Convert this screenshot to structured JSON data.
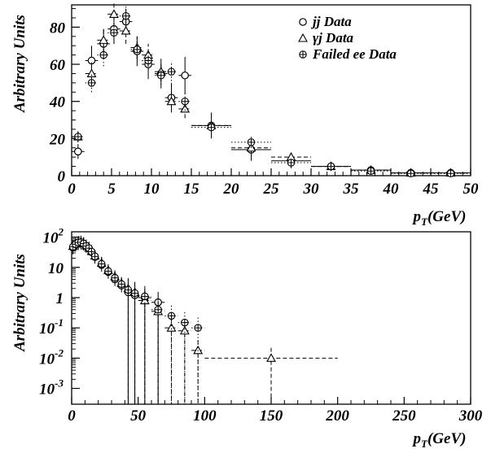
{
  "chart_data": [
    {
      "type": "scatter",
      "xlabel": "p_T(GeV)",
      "ylabel": "Arbitrary Units",
      "xlim": [
        0,
        50
      ],
      "ylim": [
        0,
        92
      ],
      "xticks": [
        "0",
        "5",
        "10",
        "15",
        "20",
        "25",
        "30",
        "35",
        "40",
        "45",
        "50"
      ],
      "yticks": [
        "0",
        "20",
        "40",
        "60",
        "80"
      ],
      "legend_position": "top-right",
      "series": [
        {
          "name": "jj Data",
          "marker": "circle",
          "line_style": "solid",
          "points": [
            {
              "x": 0.8,
              "y": 13,
              "xerr": 0.8,
              "yerr": 4
            },
            {
              "x": 2.5,
              "y": 62,
              "xerr": 0.8,
              "yerr": 8
            },
            {
              "x": 4.0,
              "y": 71,
              "xerr": 0.8,
              "yerr": 8
            },
            {
              "x": 5.3,
              "y": 79,
              "xerr": 0.8,
              "yerr": 8
            },
            {
              "x": 6.8,
              "y": 83,
              "xerr": 0.8,
              "yerr": 7
            },
            {
              "x": 8.2,
              "y": 67,
              "xerr": 0.8,
              "yerr": 8
            },
            {
              "x": 9.6,
              "y": 60,
              "xerr": 0.8,
              "yerr": 8
            },
            {
              "x": 11.2,
              "y": 55,
              "xerr": 0.8,
              "yerr": 8
            },
            {
              "x": 12.5,
              "y": 42,
              "xerr": 0.8,
              "yerr": 8
            },
            {
              "x": 14.2,
              "y": 54,
              "xerr": 0.8,
              "yerr": 10
            },
            {
              "x": 17.5,
              "y": 27,
              "xerr": 2.5,
              "yerr": 7
            },
            {
              "x": 22.5,
              "y": 14,
              "xerr": 2.5,
              "yerr": 6
            },
            {
              "x": 27.5,
              "y": 8,
              "xerr": 2.5,
              "yerr": 4
            },
            {
              "x": 32.5,
              "y": 5,
              "xerr": 2.5,
              "yerr": 2.5
            },
            {
              "x": 37.5,
              "y": 3,
              "xerr": 2.5,
              "yerr": 2
            },
            {
              "x": 42.5,
              "y": 1.5,
              "xerr": 2.5,
              "yerr": 1
            },
            {
              "x": 47.5,
              "y": 1.5,
              "xerr": 2.5,
              "yerr": 1
            }
          ]
        },
        {
          "name": "γj Data",
          "marker": "triangle",
          "line_style": "dashed",
          "points": [
            {
              "x": 0.8,
              "y": 21,
              "xerr": 0.8,
              "yerr": 3
            },
            {
              "x": 2.5,
              "y": 55,
              "xerr": 0.8,
              "yerr": 6
            },
            {
              "x": 4.0,
              "y": 73,
              "xerr": 0.8,
              "yerr": 7
            },
            {
              "x": 5.3,
              "y": 87,
              "xerr": 0.8,
              "yerr": 7
            },
            {
              "x": 6.8,
              "y": 78,
              "xerr": 0.8,
              "yerr": 7
            },
            {
              "x": 8.2,
              "y": 69,
              "xerr": 0.8,
              "yerr": 6
            },
            {
              "x": 9.6,
              "y": 65,
              "xerr": 0.8,
              "yerr": 6
            },
            {
              "x": 11.2,
              "y": 56,
              "xerr": 0.8,
              "yerr": 5
            },
            {
              "x": 12.5,
              "y": 40,
              "xerr": 0.8,
              "yerr": 5
            },
            {
              "x": 14.2,
              "y": 36,
              "xerr": 0.8,
              "yerr": 5
            },
            {
              "x": 17.5,
              "y": 27,
              "xerr": 2.5,
              "yerr": 3
            },
            {
              "x": 22.5,
              "y": 15,
              "xerr": 2.5,
              "yerr": 3
            },
            {
              "x": 27.5,
              "y": 10,
              "xerr": 2.5,
              "yerr": 2
            },
            {
              "x": 32.5,
              "y": 5,
              "xerr": 2.5,
              "yerr": 1.5
            },
            {
              "x": 37.5,
              "y": 3,
              "xerr": 2.5,
              "yerr": 1
            },
            {
              "x": 42.5,
              "y": 1.5,
              "xerr": 2.5,
              "yerr": 0.8
            },
            {
              "x": 47.5,
              "y": 1.5,
              "xerr": 2.5,
              "yerr": 0.8
            }
          ]
        },
        {
          "name": "Failed ee Data",
          "marker": "crossed-circle",
          "line_style": "dotted",
          "points": [
            {
              "x": 0.8,
              "y": 21,
              "xerr": 0.8,
              "yerr": 3
            },
            {
              "x": 2.5,
              "y": 50,
              "xerr": 0.8,
              "yerr": 5
            },
            {
              "x": 4.0,
              "y": 65,
              "xerr": 0.8,
              "yerr": 6
            },
            {
              "x": 5.3,
              "y": 77,
              "xerr": 0.8,
              "yerr": 6
            },
            {
              "x": 6.8,
              "y": 86,
              "xerr": 0.8,
              "yerr": 6
            },
            {
              "x": 8.2,
              "y": 68,
              "xerr": 0.8,
              "yerr": 5
            },
            {
              "x": 9.6,
              "y": 62,
              "xerr": 0.8,
              "yerr": 5
            },
            {
              "x": 11.2,
              "y": 54,
              "xerr": 0.8,
              "yerr": 5
            },
            {
              "x": 12.5,
              "y": 56,
              "xerr": 0.8,
              "yerr": 5
            },
            {
              "x": 14.2,
              "y": 40,
              "xerr": 0.8,
              "yerr": 5
            },
            {
              "x": 17.5,
              "y": 26,
              "xerr": 2.5,
              "yerr": 3
            },
            {
              "x": 22.5,
              "y": 18,
              "xerr": 2.5,
              "yerr": 3
            },
            {
              "x": 27.5,
              "y": 7,
              "xerr": 2.5,
              "yerr": 2
            },
            {
              "x": 32.5,
              "y": 5,
              "xerr": 2.5,
              "yerr": 1.5
            },
            {
              "x": 37.5,
              "y": 2.5,
              "xerr": 2.5,
              "yerr": 1
            },
            {
              "x": 42.5,
              "y": 1.2,
              "xerr": 2.5,
              "yerr": 0.8
            },
            {
              "x": 47.5,
              "y": 1.2,
              "xerr": 2.5,
              "yerr": 0.8
            }
          ]
        }
      ]
    },
    {
      "type": "scatter",
      "xlabel": "p_T(GeV)",
      "ylabel": "Arbitrary Units",
      "xlim": [
        0,
        300
      ],
      "ylim": [
        0.0003,
        150
      ],
      "y_scale": "log",
      "xticks": [
        "0",
        "50",
        "100",
        "150",
        "200",
        "250",
        "300"
      ],
      "yticks": [
        {
          "base": "10",
          "exp": "2"
        },
        {
          "base": "10",
          "exp": ""
        },
        {
          "base": "1",
          "exp": ""
        },
        {
          "base": "10",
          "exp": "-1"
        },
        {
          "base": "10",
          "exp": "-2"
        },
        {
          "base": "10",
          "exp": "-3"
        }
      ],
      "series": [
        {
          "name": "jj Data",
          "marker": "circle",
          "line_style": "solid",
          "points": [
            {
              "x": 1,
              "y": 45
            },
            {
              "x": 3,
              "y": 55
            },
            {
              "x": 5,
              "y": 62
            },
            {
              "x": 7,
              "y": 65
            },
            {
              "x": 9,
              "y": 60
            },
            {
              "x": 11,
              "y": 50
            },
            {
              "x": 13,
              "y": 42
            },
            {
              "x": 15,
              "y": 32
            },
            {
              "x": 17.5,
              "y": 22
            },
            {
              "x": 22.5,
              "y": 12
            },
            {
              "x": 27.5,
              "y": 7
            },
            {
              "x": 32.5,
              "y": 4
            },
            {
              "x": 37.5,
              "y": 2.5
            },
            {
              "x": 42.5,
              "y": 1.5
            },
            {
              "x": 47.5,
              "y": 1.2
            },
            {
              "x": 55,
              "y": 1.0
            },
            {
              "x": 65,
              "y": 0.7
            }
          ]
        },
        {
          "name": "γj Data",
          "marker": "triangle",
          "line_style": "dashed",
          "points": [
            {
              "x": 1,
              "y": 50
            },
            {
              "x": 3,
              "y": 60
            },
            {
              "x": 5,
              "y": 68
            },
            {
              "x": 7,
              "y": 70
            },
            {
              "x": 9,
              "y": 62
            },
            {
              "x": 11,
              "y": 52
            },
            {
              "x": 13,
              "y": 44
            },
            {
              "x": 15,
              "y": 34
            },
            {
              "x": 17.5,
              "y": 24
            },
            {
              "x": 22.5,
              "y": 14
            },
            {
              "x": 27.5,
              "y": 8
            },
            {
              "x": 32.5,
              "y": 5
            },
            {
              "x": 37.5,
              "y": 3
            },
            {
              "x": 42.5,
              "y": 2
            },
            {
              "x": 47.5,
              "y": 1.5
            },
            {
              "x": 55,
              "y": 0.8
            },
            {
              "x": 65,
              "y": 0.35
            },
            {
              "x": 75,
              "y": 0.1
            },
            {
              "x": 85,
              "y": 0.08
            },
            {
              "x": 95,
              "y": 0.018
            },
            {
              "x": 150,
              "y": 0.01
            }
          ]
        },
        {
          "name": "Failed ee Data",
          "marker": "crossed-circle",
          "line_style": "dotted",
          "points": [
            {
              "x": 1,
              "y": 48
            },
            {
              "x": 3,
              "y": 58
            },
            {
              "x": 5,
              "y": 66
            },
            {
              "x": 7,
              "y": 68
            },
            {
              "x": 9,
              "y": 61
            },
            {
              "x": 11,
              "y": 51
            },
            {
              "x": 13,
              "y": 43
            },
            {
              "x": 15,
              "y": 33
            },
            {
              "x": 17.5,
              "y": 23
            },
            {
              "x": 22.5,
              "y": 13
            },
            {
              "x": 27.5,
              "y": 7.5
            },
            {
              "x": 32.5,
              "y": 4.5
            },
            {
              "x": 37.5,
              "y": 2.8
            },
            {
              "x": 42.5,
              "y": 1.8
            },
            {
              "x": 47.5,
              "y": 1.4
            },
            {
              "x": 55,
              "y": 1.1
            },
            {
              "x": 65,
              "y": 0.4
            },
            {
              "x": 75,
              "y": 0.25
            },
            {
              "x": 85,
              "y": 0.15
            },
            {
              "x": 95,
              "y": 0.1
            }
          ]
        }
      ]
    }
  ]
}
